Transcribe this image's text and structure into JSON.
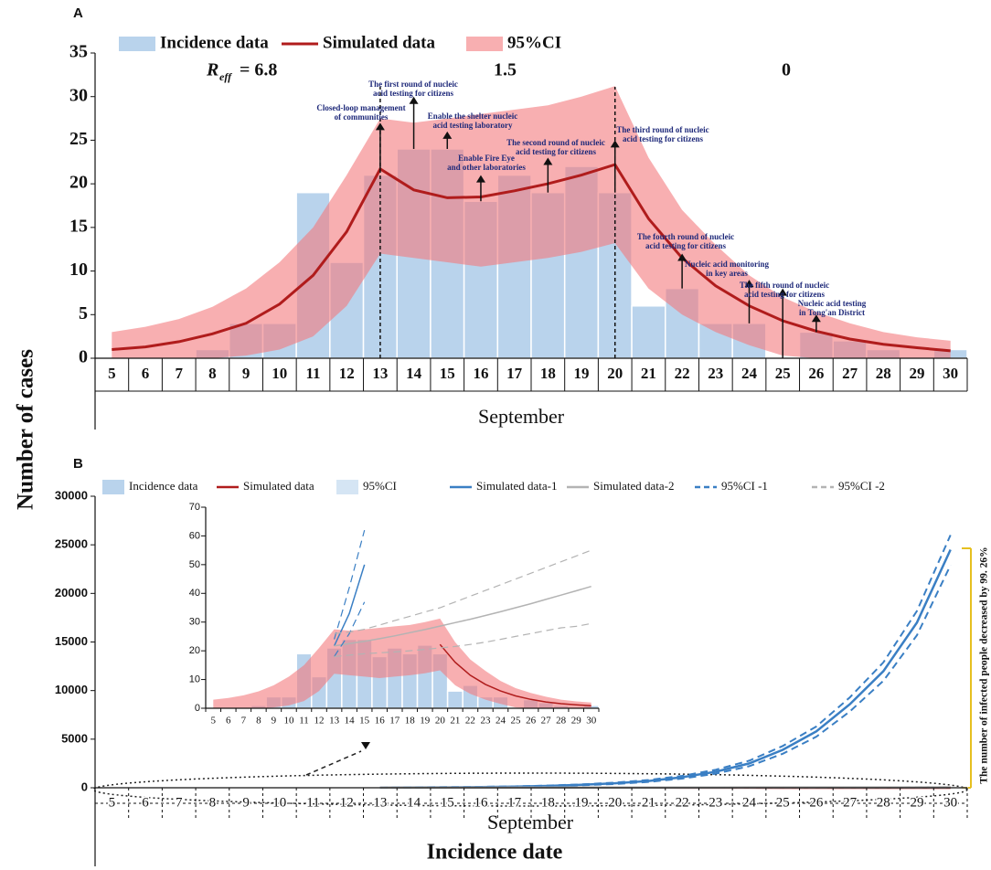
{
  "ylabel": "Number of cases",
  "xlabel_bottom": "Incidence date",
  "side_note": "The number of infected people decreased by 99. 26%",
  "chart_data": [
    {
      "type": "bar",
      "panel": "A",
      "xlabel": "September",
      "legend": true,
      "categories": [
        5,
        6,
        7,
        8,
        9,
        10,
        11,
        12,
        13,
        14,
        15,
        16,
        17,
        18,
        19,
        20,
        21,
        22,
        23,
        24,
        25,
        26,
        27,
        28,
        29,
        30
      ],
      "ylim": [
        0,
        35
      ],
      "yticks": [
        0,
        5,
        10,
        15,
        20,
        25,
        30,
        35
      ],
      "reff": {
        "symbol": "R",
        "subscript": "eff",
        "values": [
          "= 6.8",
          "1.5",
          "0"
        ]
      },
      "annotations": [
        {
          "lines": [
            "Closed-loop management",
            "of communities"
          ]
        },
        {
          "lines": [
            "The first round of nucleic",
            "acid testing for citizens"
          ]
        },
        {
          "lines": [
            "Enable the shelter nucleic",
            "acid testing laboratory"
          ]
        },
        {
          "lines": [
            "Enable Fire Eye",
            "and other laboratories"
          ]
        },
        {
          "lines": [
            "The second round of nucleic",
            "acid testing for citizens"
          ]
        },
        {
          "lines": [
            "The third round of nucleic",
            "acid testing for citizens"
          ]
        },
        {
          "lines": [
            "The fourth round of nucleic",
            "acid testing for citizens"
          ]
        },
        {
          "lines": [
            "Nucleic acid monitoring",
            "in key areas"
          ]
        },
        {
          "lines": [
            "The fifth round of nucleic",
            "acid testing for citizens"
          ]
        },
        {
          "lines": [
            "Nucleic acid testing",
            "in Tong'an District"
          ]
        }
      ],
      "series": [
        {
          "name": "Incidence data",
          "type": "bar",
          "color": "#b9d3ec",
          "values": [
            0,
            0,
            0,
            1,
            4,
            4,
            19,
            11,
            21,
            24,
            24,
            18,
            21,
            19,
            22,
            19,
            6,
            8,
            4,
            4,
            0,
            3,
            2,
            1,
            0,
            1
          ]
        },
        {
          "name": "Simulated data",
          "type": "line",
          "color": "#b01c1c",
          "values": [
            1,
            1.3,
            1.9,
            2.8,
            4,
            6.2,
            9.5,
            14.5,
            21.7,
            19.3,
            18.4,
            18.5,
            19.2,
            20,
            21,
            22.2,
            16,
            11.5,
            8.3,
            6,
            4.3,
            3.1,
            2.2,
            1.6,
            1.2,
            0.85
          ]
        },
        {
          "name": "95%CI",
          "type": "band",
          "color": "#f47a7d",
          "upper": [
            3,
            3.6,
            4.5,
            5.9,
            8,
            11,
            15,
            21,
            27.5,
            27,
            27.5,
            28,
            28.5,
            29,
            30,
            31.2,
            23,
            17,
            13,
            9.5,
            7,
            5.3,
            4,
            3,
            2.4,
            2
          ],
          "lower": [
            0,
            0,
            0,
            0,
            0.3,
            1,
            2.5,
            6,
            12,
            11.5,
            11,
            10.5,
            11,
            11.5,
            12.2,
            13.2,
            8,
            5,
            3,
            1.5,
            0.3,
            0,
            0,
            0,
            0,
            0
          ]
        }
      ]
    },
    {
      "type": "bar",
      "panel": "B",
      "xlabel": "September",
      "legend": true,
      "categories": [
        5,
        6,
        7,
        8,
        9,
        10,
        11,
        12,
        13,
        14,
        15,
        16,
        17,
        18,
        19,
        20,
        21,
        22,
        23,
        24,
        25,
        26,
        27,
        28,
        29,
        30
      ],
      "ylim": [
        0,
        30000
      ],
      "yticks": [
        0,
        5000,
        10000,
        15000,
        20000,
        25000,
        30000
      ],
      "series": [
        {
          "name": "Incidence data",
          "type": "bar",
          "color": "#b9d3ec",
          "values": [
            0,
            0,
            0,
            1,
            4,
            4,
            19,
            11,
            21,
            24,
            24,
            18,
            21,
            19,
            22,
            19,
            6,
            8,
            4,
            4,
            0,
            3,
            2,
            1,
            0,
            1
          ]
        },
        {
          "name": "Simulated data",
          "type": "line",
          "color": "#b01c1c",
          "values": [
            null,
            null,
            null,
            null,
            null,
            null,
            null,
            null,
            null,
            null,
            null,
            null,
            null,
            null,
            null,
            22.2,
            16,
            11.5,
            8.3,
            6,
            4.3,
            3.1,
            2.2,
            1.6,
            1.2,
            0.85
          ]
        },
        {
          "name": "95%CI",
          "type": "band",
          "color": "#b9d3ec",
          "upper": [
            3,
            3.6,
            4.5,
            5.9,
            8,
            11,
            15,
            21,
            27.5,
            27,
            27.5,
            28,
            28.5,
            29,
            30,
            31.2,
            23,
            17,
            13,
            9.5,
            7,
            5.3,
            4,
            3,
            2.4,
            2
          ],
          "lower": [
            0,
            0,
            0,
            0,
            0.3,
            1,
            2.5,
            6,
            12,
            11.5,
            11,
            10.5,
            11,
            11.5,
            12.2,
            13.2,
            8,
            5,
            3,
            1.5,
            0.3,
            0,
            0,
            0,
            0,
            0
          ]
        },
        {
          "name": "Simulated data-1",
          "type": "line",
          "color": "#3a7fc4",
          "values": [
            null,
            null,
            null,
            null,
            null,
            null,
            null,
            null,
            21.7,
            33,
            50,
            78,
            120,
            190,
            300,
            460,
            700,
            1080,
            1650,
            2500,
            3900,
            5800,
            8600,
            12000,
            17000,
            24500
          ]
        },
        {
          "name": "Simulated data-2",
          "type": "line",
          "color": "#b3b3b3",
          "values": [
            null,
            null,
            null,
            null,
            null,
            null,
            null,
            null,
            21.7,
            22.5,
            23.3,
            24.2,
            25.2,
            26.3,
            27.4,
            28.6,
            29.8,
            31,
            32.3,
            33.6,
            35,
            36.4,
            37.9,
            39.4,
            40.9,
            42.4
          ]
        },
        {
          "name": "95%CI -1",
          "type": "dashed-band",
          "color": "#3a7fc4",
          "upper": [
            null,
            null,
            null,
            null,
            null,
            null,
            null,
            null,
            24,
            42,
            62,
            95,
            145,
            225,
            350,
            530,
            800,
            1220,
            1850,
            2780,
            4300,
            6300,
            9300,
            12900,
            18200,
            26000
          ],
          "lower": [
            null,
            null,
            null,
            null,
            null,
            null,
            null,
            null,
            18,
            26,
            37,
            60,
            95,
            155,
            250,
            390,
            600,
            940,
            1450,
            2220,
            3500,
            5250,
            7850,
            11000,
            15700,
            22900
          ]
        },
        {
          "name": "95%CI -2",
          "type": "dashed-band",
          "color": "#b3b3b3",
          "upper": [
            null,
            null,
            null,
            null,
            null,
            null,
            null,
            null,
            26,
            26.5,
            27.5,
            29,
            30.5,
            32,
            33.5,
            35,
            37,
            39,
            41,
            43,
            45,
            47,
            49,
            51,
            53,
            55
          ],
          "lower": [
            null,
            null,
            null,
            null,
            null,
            null,
            null,
            null,
            18,
            18.5,
            19,
            19.3,
            19.6,
            20,
            20.5,
            21,
            21.5,
            22.2,
            23,
            24,
            25,
            26,
            27,
            28,
            28.5,
            29.5
          ]
        }
      ]
    },
    {
      "type": "bar",
      "legend": false,
      "categories": [
        5,
        6,
        7,
        8,
        9,
        10,
        11,
        12,
        13,
        14,
        15,
        16,
        17,
        18,
        19,
        20,
        21,
        22,
        23,
        24,
        25,
        26,
        27,
        28,
        29,
        30
      ],
      "ylim": [
        0,
        70
      ],
      "yticks": [
        0,
        10,
        20,
        30,
        40,
        50,
        60,
        70
      ],
      "series": [
        {
          "type": "bar",
          "color": "#b9d3ec",
          "values": [
            0,
            0,
            0,
            1,
            4,
            4,
            19,
            11,
            21,
            24,
            24,
            18,
            21,
            19,
            22,
            19,
            6,
            8,
            4,
            4,
            0,
            3,
            2,
            1,
            0,
            1
          ]
        },
        {
          "type": "line",
          "color": "#b01c1c",
          "values": [
            null,
            null,
            null,
            null,
            null,
            null,
            null,
            null,
            null,
            null,
            null,
            null,
            null,
            null,
            null,
            22.2,
            16,
            11.5,
            8.3,
            6,
            4.3,
            3.1,
            2.2,
            1.6,
            1.2,
            0.85
          ]
        },
        {
          "type": "band",
          "color": "#f47a7d",
          "upper": [
            3,
            3.6,
            4.5,
            5.9,
            8,
            11,
            15,
            21,
            27.5,
            27,
            27.5,
            28,
            28.5,
            29,
            30,
            31.2,
            23,
            17,
            13,
            9.5,
            7,
            5.3,
            4,
            3,
            2.4,
            2
          ],
          "lower": [
            0,
            0,
            0,
            0,
            0.3,
            1,
            2.5,
            6,
            12,
            11.5,
            11,
            10.5,
            11,
            11.5,
            12.2,
            13.2,
            8,
            5,
            3,
            1.5,
            0.3,
            0,
            0,
            0,
            0,
            0
          ]
        },
        {
          "type": "line",
          "color": "#3a7fc4",
          "values": [
            null,
            null,
            null,
            null,
            null,
            null,
            null,
            null,
            21.7,
            33,
            50,
            null,
            null,
            null,
            null,
            null,
            null,
            null,
            null,
            null,
            null,
            null,
            null,
            null,
            null,
            null
          ]
        },
        {
          "type": "line",
          "color": "#b3b3b3",
          "values": [
            null,
            null,
            null,
            null,
            null,
            null,
            null,
            null,
            21.7,
            22.5,
            23.3,
            24.2,
            25.2,
            26.3,
            27.4,
            28.6,
            29.8,
            31,
            32.3,
            33.6,
            35,
            36.4,
            37.9,
            39.4,
            40.9,
            42.4
          ]
        },
        {
          "type": "dashed-band",
          "color": "#3a7fc4",
          "upper": [
            null,
            null,
            null,
            null,
            null,
            null,
            null,
            null,
            24,
            42,
            62,
            null,
            null,
            null,
            null,
            null,
            null,
            null,
            null,
            null,
            null,
            null,
            null,
            null,
            null,
            null
          ],
          "lower": [
            null,
            null,
            null,
            null,
            null,
            null,
            null,
            null,
            18,
            26,
            37,
            null,
            null,
            null,
            null,
            null,
            null,
            null,
            null,
            null,
            null,
            null,
            null,
            null,
            null,
            null
          ]
        },
        {
          "type": "dashed-band",
          "color": "#b3b3b3",
          "upper": [
            null,
            null,
            null,
            null,
            null,
            null,
            null,
            null,
            26,
            26.5,
            27.5,
            29,
            30.5,
            32,
            33.5,
            35,
            37,
            39,
            41,
            43,
            45,
            47,
            49,
            51,
            53,
            55
          ],
          "lower": [
            null,
            null,
            null,
            null,
            null,
            null,
            null,
            null,
            18,
            18.5,
            19,
            19.3,
            19.6,
            20,
            20.5,
            21,
            21.5,
            22.2,
            23,
            24,
            25,
            26,
            27,
            28,
            28.5,
            29.5
          ]
        }
      ]
    }
  ]
}
